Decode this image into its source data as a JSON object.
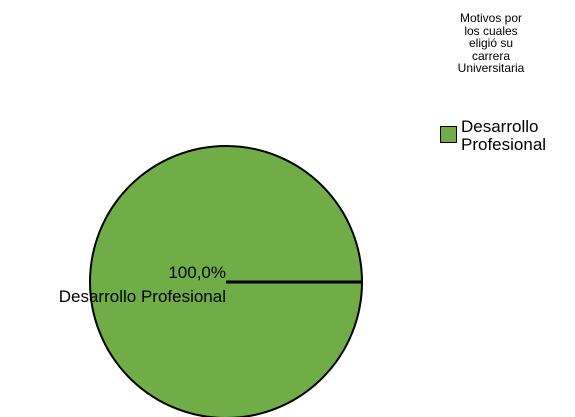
{
  "chart_data": {
    "type": "pie",
    "legend_title": "Motivos por\nlos cuales\neligió su\ncarrera\nUniversitaria",
    "legend_position": "top-right",
    "categories": [
      "Desarrollo Profesional"
    ],
    "values": [
      100.0
    ],
    "data_labels": [
      "100,0%"
    ],
    "slice_labels": [
      "Desarrollo Profesional"
    ],
    "legend_entries": [
      "Desarrollo\nProfesional"
    ],
    "colors": [
      "#70AD47"
    ]
  }
}
